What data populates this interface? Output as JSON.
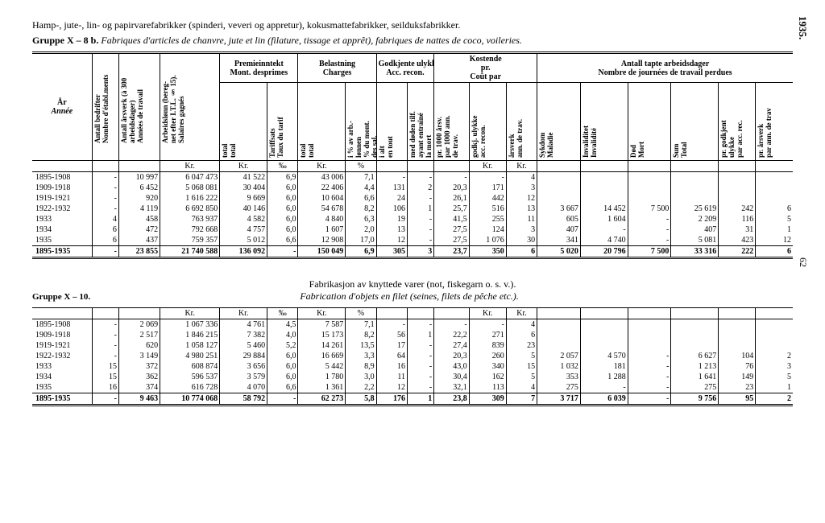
{
  "page": {
    "year": "1935.",
    "num": "62"
  },
  "sectionA": {
    "title_main": "Hamp-, jute-, lin- og papirvarefabrikker (spinderi, veveri og appretur), kokusmattefabrikker, seilduksfabrikker.",
    "group_label": "Gruppe X – 8 b.",
    "subtitle_it": "Fabriques d'articles de chanvre, jute et lin (filature, tissage et apprêt), fabriques de nattes de coco, voileries.",
    "headers": {
      "ar": "År",
      "annee": "Année",
      "antall_bedrifter": "Antall bedrifter\nNombre d'établ.ments",
      "antall_arsverk": "Antall årsverk (à 300\narbeidsdager)\nAnnées de travail",
      "arbeidslonn": "Arbeidslønn (bereg-\nnet efter I.T.L. § 15).\nSalaires gagnés",
      "premie_group": "Premieinntekt\nMont. desprimes",
      "premie_total": "total\ntotal",
      "premie_tariff": "Tariffsats\nTaux du tarif",
      "belast_group": "Belastning\nCharges",
      "belast_total": "total\ntotal",
      "belast_pct": "i % av arb.-\nlønnen\n% du mont.\ndes sal.",
      "godkj_group": "Godkjente ulykker\nAcc. recon.",
      "godkj_ialt": "i alt\nen tout",
      "godkj_dod": "med døden tilf.\nayant entraîné\nla mort",
      "kost_group": "Kostende\npr.\nCoût par",
      "kost_1000": "pr. 1000 årsv.\npar 1000 ann.\nde trav.",
      "kost_ulykke": "godkj. ulykke\nacc. recon.",
      "kost_arsverk": "årsverk\nann. de trav.",
      "tapte_group": "Antall tapte arbeidsdager\nNombre de journées de travail perdues",
      "sykdom": "Sykdom\nMaladie",
      "invalid": "Invaliditet\nInvalidité",
      "dod": "Død\nMort",
      "sum": "Sum\nTotal",
      "pr_godkj": "pr. godkjent\nulykke\npar acc. rec.",
      "pr_arsverk2": "pr. årsverk\npar ann. de trav"
    },
    "unit_row": [
      "",
      "",
      "",
      "Kr.",
      "Kr.",
      "‰",
      "Kr.",
      "%",
      "",
      "",
      "",
      "Kr.",
      "Kr.",
      "",
      "",
      "",
      "",
      "",
      ""
    ],
    "rows": [
      {
        "y": "1895-1908",
        "c": [
          "-",
          "10 997",
          "6 047 473",
          "41 522",
          "6,9",
          "43 006",
          "7,1",
          "-",
          "-",
          "-",
          "-",
          "4",
          "",
          "",
          "",
          "",
          "",
          ""
        ]
      },
      {
        "y": "1909-1918",
        "c": [
          "-",
          "6 452",
          "5 068 081",
          "30 404",
          "6,0",
          "22 406",
          "4,4",
          "131",
          "2",
          "20,3",
          "171",
          "3",
          "",
          "",
          "",
          "",
          "",
          ""
        ]
      },
      {
        "y": "1919-1921",
        "c": [
          "-",
          "920",
          "1 616 222",
          "9 669",
          "6,0",
          "10 604",
          "6,6",
          "24",
          "-",
          "26,1",
          "442",
          "12",
          "",
          "",
          "",
          "",
          "",
          ""
        ]
      },
      {
        "y": "1922-1932",
        "c": [
          "-",
          "4 119",
          "6 692 850",
          "40 146",
          "6,0",
          "54 678",
          "8,2",
          "106",
          "1",
          "25,7",
          "516",
          "13",
          "3 667",
          "14 452",
          "7 500",
          "25 619",
          "242",
          "6"
        ]
      },
      {
        "y": "1933",
        "c": [
          "4",
          "458",
          "763 937",
          "4 582",
          "6,0",
          "4 840",
          "6,3",
          "19",
          "-",
          "41,5",
          "255",
          "11",
          "605",
          "1 604",
          "-",
          "2 209",
          "116",
          "5"
        ]
      },
      {
        "y": "1934",
        "c": [
          "6",
          "472",
          "792 668",
          "4 757",
          "6,0",
          "1 607",
          "2,0",
          "13",
          "-",
          "27,5",
          "124",
          "3",
          "407",
          "-",
          "-",
          "407",
          "31",
          "1"
        ]
      },
      {
        "y": "1935",
        "c": [
          "6",
          "437",
          "759 357",
          "5 012",
          "6,6",
          "12 908",
          "17,0",
          "12",
          "-",
          "27,5",
          "1 076",
          "30",
          "341",
          "4 740",
          "-",
          "5 081",
          "423",
          "12"
        ]
      }
    ],
    "total": {
      "y": "1895-1935",
      "c": [
        "-",
        "23 855",
        "21 740 588",
        "136 092",
        "-",
        "150 049",
        "6,9",
        "305",
        "3",
        "23,7",
        "350",
        "6",
        "5 020",
        "20 796",
        "7 500",
        "33 316",
        "222",
        "6"
      ]
    }
  },
  "sectionB": {
    "title": "Fabrikasjon av knyttede varer (not, fiskegarn o. s. v.).",
    "group_label": "Gruppe X – 10.",
    "subtitle_it": "Fabrication d'objets en filet (seines, filets de pêche etc.).",
    "unit_row": [
      "",
      "",
      "",
      "Kr.",
      "Kr.",
      "‰",
      "Kr.",
      "%",
      "",
      "",
      "",
      "Kr.",
      "Kr.",
      "",
      "",
      "",
      "",
      "",
      ""
    ],
    "rows": [
      {
        "y": "1895-1908",
        "c": [
          "-",
          "2 069",
          "1 067 336",
          "4 761",
          "4,5",
          "7 587",
          "7,1",
          "-",
          "-",
          "-",
          "-",
          "4",
          "",
          "",
          "",
          "",
          "",
          ""
        ]
      },
      {
        "y": "1909-1918",
        "c": [
          "-",
          "2 517",
          "1 846 215",
          "7 382",
          "4,0",
          "15 173",
          "8,2",
          "56",
          "1",
          "22,2",
          "271",
          "6",
          "",
          "",
          "",
          "",
          "",
          ""
        ]
      },
      {
        "y": "1919-1921",
        "c": [
          "-",
          "620",
          "1 058 127",
          "5 460",
          "5,2",
          "14 261",
          "13,5",
          "17",
          "-",
          "27,4",
          "839",
          "23",
          "",
          "",
          "",
          "",
          "",
          ""
        ]
      },
      {
        "y": "1922-1932",
        "c": [
          "-",
          "3 149",
          "4 980 251",
          "29 884",
          "6,0",
          "16 669",
          "3,3",
          "64",
          "-",
          "20,3",
          "260",
          "5",
          "2 057",
          "4 570",
          "-",
          "6 627",
          "104",
          "2"
        ]
      },
      {
        "y": "1933",
        "c": [
          "15",
          "372",
          "608 874",
          "3 656",
          "6,0",
          "5 442",
          "8,9",
          "16",
          "-",
          "43,0",
          "340",
          "15",
          "1 032",
          "181",
          "-",
          "1 213",
          "76",
          "3"
        ]
      },
      {
        "y": "1934",
        "c": [
          "15",
          "362",
          "596 537",
          "3 579",
          "6,0",
          "1 780",
          "3,0",
          "11",
          "-",
          "30,4",
          "162",
          "5",
          "353",
          "1 288",
          "-",
          "1 641",
          "149",
          "5"
        ]
      },
      {
        "y": "1935",
        "c": [
          "16",
          "374",
          "616 728",
          "4 070",
          "6,6",
          "1 361",
          "2,2",
          "12",
          "-",
          "32,1",
          "113",
          "4",
          "275",
          "-",
          "-",
          "275",
          "23",
          "1"
        ]
      }
    ],
    "total": {
      "y": "1895-1935",
      "c": [
        "-",
        "9 463",
        "10 774 068",
        "58 792",
        "-",
        "62 273",
        "5,8",
        "176",
        "1",
        "23,8",
        "309",
        "7",
        "3 717",
        "6 039",
        "-",
        "9 756",
        "95",
        "2"
      ]
    }
  }
}
